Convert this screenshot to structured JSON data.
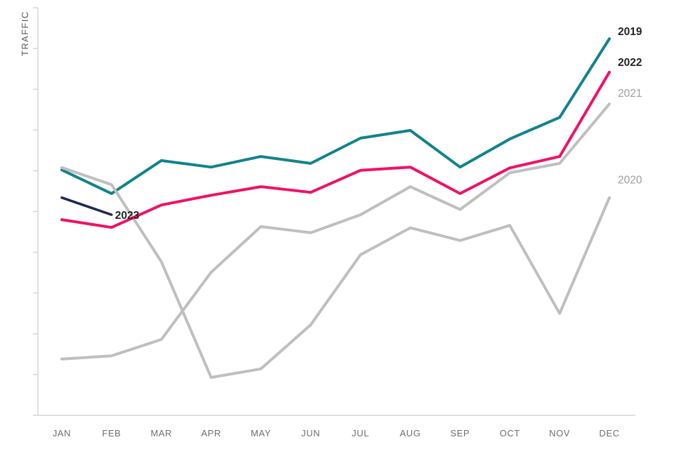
{
  "chart_data": {
    "type": "line",
    "title": "",
    "xlabel": "",
    "ylabel": "TRAFFIC",
    "categories": [
      "JAN",
      "FEB",
      "MAR",
      "APR",
      "MAY",
      "JUN",
      "JUL",
      "AUG",
      "SEP",
      "OCT",
      "NOV",
      "DEC"
    ],
    "ylim": [
      0,
      100
    ],
    "y_tick_step": 10,
    "y_tick_labels_visible": false,
    "grid": false,
    "legend_position": "end-of-line-labels",
    "axis_color": "#D6D6D6",
    "tick_label_color": "#6E6E6E",
    "series": [
      {
        "name": "2019",
        "color": "#12838C",
        "line_width": 4,
        "values": [
          60.2,
          54.4,
          62.5,
          60.9,
          63.5,
          61.8,
          68.0,
          69.9,
          60.9,
          67.8,
          73.1,
          92.4
        ],
        "label_color": "#252423",
        "label_bold": true,
        "label_dx": 12,
        "label_dy": -5
      },
      {
        "name": "2020",
        "color": "#BFBFBF",
        "line_width": 4,
        "values": [
          60.8,
          56.6,
          37.7,
          9.3,
          11.4,
          22.2,
          39.4,
          46.0,
          42.9,
          46.6,
          25.0,
          53.4
        ],
        "label_color": "#9D9D9D",
        "label_bold": false,
        "label_dx": 12,
        "label_dy": -20
      },
      {
        "name": "2021",
        "color": "#BFBFBF",
        "line_width": 4,
        "values": [
          13.8,
          14.6,
          18.6,
          35.1,
          46.3,
          44.8,
          49.2,
          56.1,
          50.5,
          59.5,
          61.8,
          76.4
        ],
        "label_color": "#9D9D9D",
        "label_bold": false,
        "label_dx": 12,
        "label_dy": -10
      },
      {
        "name": "2022",
        "color": "#F01166",
        "line_width": 4,
        "values": [
          48.0,
          46.1,
          51.6,
          54.0,
          56.1,
          54.7,
          60.1,
          60.9,
          54.4,
          60.7,
          63.5,
          84.2
        ],
        "label_color": "#252423",
        "label_bold": true,
        "label_dx": 12,
        "label_dy": -9
      },
      {
        "name": "2023",
        "color": "#1B2A54",
        "line_width": 3.5,
        "values": [
          53.4,
          49.2
        ],
        "label_color": "#252423",
        "label_bold": true,
        "label_dx": 5,
        "label_dy": 6
      }
    ]
  }
}
